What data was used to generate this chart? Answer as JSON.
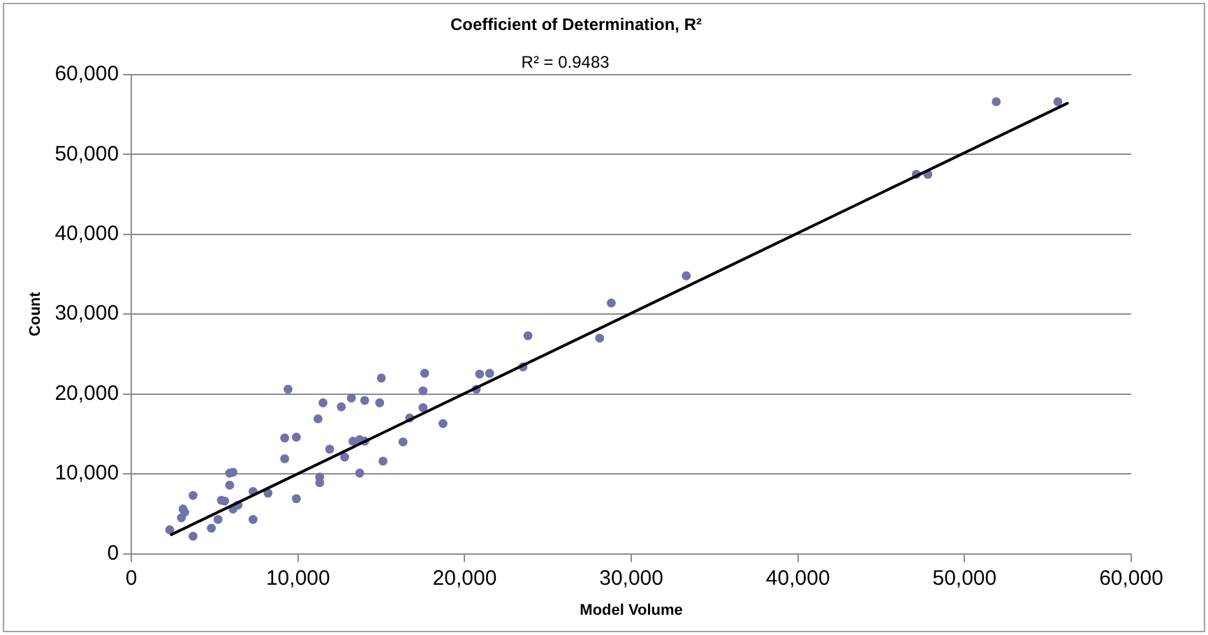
{
  "chart_data": {
    "type": "scatter",
    "title": "Coefficient of Determination, R²",
    "xlabel": "Model Volume",
    "ylabel": "Count",
    "annotations": [
      "R² = 0.9483"
    ],
    "xlim": [
      0,
      60000
    ],
    "ylim": [
      0,
      60000
    ],
    "xticks": [
      0,
      {
        "value": 10000,
        "label": "10,000"
      },
      {
        "value": 20000,
        "label": "20,000"
      },
      {
        "value": 30000,
        "label": "30,000"
      },
      {
        "value": 40000,
        "label": "40,000"
      },
      {
        "value": 50000,
        "label": "50,000"
      },
      {
        "value": 60000,
        "label": "60,000"
      }
    ],
    "yticks": [
      0,
      {
        "value": 10000,
        "label": "10,000"
      },
      {
        "value": 20000,
        "label": "20,000"
      },
      {
        "value": 30000,
        "label": "30,000"
      },
      {
        "value": 40000,
        "label": "40,000"
      },
      {
        "value": 50000,
        "label": "50,000"
      },
      {
        "value": 60000,
        "label": "60,000"
      }
    ],
    "grid": "y",
    "marker": "circle",
    "series": [
      {
        "color": "#6f73a8",
        "x": [
          2300,
          3700,
          4800,
          3000,
          3100,
          3200,
          3700,
          5200,
          5400,
          5600,
          5900,
          6100,
          5900,
          6100,
          6400,
          7300,
          7300,
          8200,
          9200,
          9200,
          9900,
          9900,
          9400,
          11300,
          11300,
          11900,
          11200,
          11500,
          12600,
          13200,
          14000,
          14900,
          15000,
          12800,
          13300,
          13700,
          14000,
          13700,
          15100,
          16300,
          16700,
          17500,
          17500,
          17600,
          18700,
          20900,
          21500,
          20700,
          23800,
          23500,
          28100,
          28800,
          33300,
          47100,
          47800,
          51900,
          55600
        ],
        "values": [
          3000,
          2200,
          3200,
          4500,
          5600,
          5200,
          7300,
          4300,
          6700,
          6600,
          8600,
          10200,
          10100,
          5600,
          6100,
          4300,
          7800,
          7600,
          11900,
          14500,
          14600,
          6900,
          20600,
          9600,
          8900,
          13100,
          16900,
          18900,
          18400,
          19500,
          19200,
          18900,
          22000,
          12100,
          14100,
          14300,
          14100,
          10100,
          11600,
          14000,
          17000,
          18300,
          20400,
          22600,
          16300,
          22500,
          22600,
          20600,
          27300,
          23400,
          27000,
          31400,
          34800,
          47500,
          47500,
          56600,
          56600
        ]
      },
      {
        "type": "line",
        "color": "#000000",
        "marker": "none",
        "x": [
          2400,
          56170
        ],
        "values": [
          2400,
          56400
        ]
      }
    ]
  }
}
